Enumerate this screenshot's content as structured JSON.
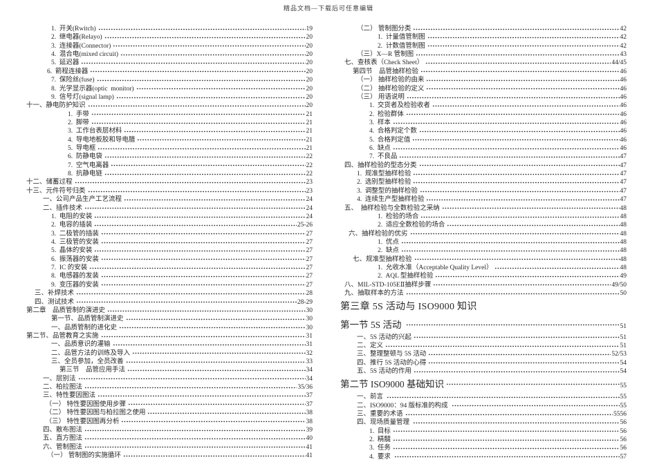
{
  "header": {
    "watermark": "精品文档—下载后可任意编辑"
  },
  "toc": {
    "left": [
      {
        "indent": 3,
        "text": "1.  开关(Rwitch)",
        "page": "19"
      },
      {
        "indent": 3,
        "text": "2.  继电器(Relayo)",
        "page": "20"
      },
      {
        "indent": 3,
        "text": "3.  连接器(Connector)",
        "page": "20"
      },
      {
        "indent": 3,
        "text": "4.  混合电(mixed circuit)",
        "page": "20"
      },
      {
        "indent": 3,
        "text": "5.  延迟器",
        "page": "20"
      },
      {
        "indent": 2.5,
        "text": "6.  箭程连接器",
        "page": "20"
      },
      {
        "indent": 3,
        "text": "7.  保险丝(fuse)",
        "page": "20"
      },
      {
        "indent": 3,
        "text": "8.  光学显示器(optic  monitor)",
        "page": "20"
      },
      {
        "indent": 3,
        "text": "9.  信号灯(signal lamp)",
        "page": "20"
      },
      {
        "indent": 0,
        "text": "十一、静电防护知识",
        "page": "20"
      },
      {
        "indent": 5,
        "text": "1.  手带",
        "page": "21"
      },
      {
        "indent": 5,
        "text": "2.  脚带",
        "page": "21"
      },
      {
        "indent": 5,
        "text": "3.  工作台表层材料",
        "page": "21"
      },
      {
        "indent": 5,
        "text": "4.  导电地板胶和导电腊",
        "page": "21"
      },
      {
        "indent": 5,
        "text": "5.  导电框",
        "page": "21"
      },
      {
        "indent": 5,
        "text": "6.  防静电袋",
        "page": "22"
      },
      {
        "indent": 5,
        "text": "7.  空气电离器",
        "page": "22"
      },
      {
        "indent": 5,
        "text": "8.  抗静电链",
        "page": "22"
      },
      {
        "indent": 0,
        "text": "十二、储蓄过程",
        "page": "23"
      },
      {
        "indent": 0,
        "text": "十三、元件符号归类",
        "page": "23"
      },
      {
        "indent": 2,
        "text": "一、公司产品生产工艺流程",
        "page": "24"
      },
      {
        "indent": 2,
        "text": "二、插件技术",
        "page": "24"
      },
      {
        "indent": 3,
        "text": "1.  电阻的安装",
        "page": "24"
      },
      {
        "indent": 3,
        "text": "2.  电容的插装",
        "page": "25-26"
      },
      {
        "indent": 3,
        "text": "3.  二极管的插装",
        "page": "27"
      },
      {
        "indent": 3,
        "text": "4.  三极管的安装",
        "page": "27"
      },
      {
        "indent": 3,
        "text": "5.  晶体的安装",
        "page": "27"
      },
      {
        "indent": 3,
        "text": "6.  振荡器的安装",
        "page": "27"
      },
      {
        "indent": 3,
        "text": "7.  IC 的安装",
        "page": "27"
      },
      {
        "indent": 3,
        "text": "8.  电感器的发装",
        "page": "27"
      },
      {
        "indent": 3,
        "text": "9.  变压器的安装",
        "page": "27"
      },
      {
        "indent": 1,
        "text": "三、补焊技术",
        "page": "28"
      },
      {
        "indent": 1,
        "text": "四、测试技术",
        "page": "28-29"
      },
      {
        "indent": 0,
        "text": "第二章　品质管制的演进史",
        "page": "30"
      },
      {
        "indent": 3,
        "text": "第一节、品质管制演进史",
        "page": "30"
      },
      {
        "indent": 3,
        "text": "一、品质管制的进化史",
        "page": "30"
      },
      {
        "indent": 0,
        "text": "第二节、品管教育之实施",
        "page": "31"
      },
      {
        "indent": 3,
        "text": "一、品质意识的灌输",
        "page": "31"
      },
      {
        "indent": 3,
        "text": "二、品管方法的训练及导入",
        "page": "32"
      },
      {
        "indent": 3,
        "text": "三、全员参加，全员改善",
        "page": "33"
      },
      {
        "indent": 4,
        "text": "第三节　品管应用手法",
        "page": "34"
      },
      {
        "indent": 2,
        "text": "一、层别法",
        "page": "34"
      },
      {
        "indent": 2,
        "text": "二、柏拉图法",
        "page": "35/36"
      },
      {
        "indent": 2,
        "text": "三、特性要因图法",
        "page": "37"
      },
      {
        "indent": 2.3,
        "text": "（一） 特性要因图使用步骤",
        "page": "37"
      },
      {
        "indent": 2.3,
        "text": "（二） 特性要因图与柏拉图之使用",
        "page": "38"
      },
      {
        "indent": 2.3,
        "text": "（三） 特性要因图再分析",
        "page": "38"
      },
      {
        "indent": 2,
        "text": "四、散布图法",
        "page": "39"
      },
      {
        "indent": 2,
        "text": "五、直方图法",
        "page": "40"
      },
      {
        "indent": 2,
        "text": "六、管制图法",
        "page": "41"
      },
      {
        "indent": 2.5,
        "text": "（一） 管制图的实施循环",
        "page": "41"
      }
    ],
    "right": [
      {
        "indent": 2,
        "text": "（二） 管制图分类",
        "page": "42"
      },
      {
        "indent": 4.5,
        "text": "1.  计量值管制图",
        "page": "42"
      },
      {
        "indent": 4.5,
        "text": "2.  计数值管制图",
        "page": "42"
      },
      {
        "indent": 2,
        "text": "（三）X—R 管制图",
        "page": "43"
      },
      {
        "indent": 0.5,
        "text": "七、查核表（Check Sheet）",
        "page": "44/45"
      },
      {
        "indent": 1.5,
        "text": "第四节　品管抽样检验",
        "page": "46"
      },
      {
        "indent": 2,
        "text": "（一） 抽样检验的由来",
        "page": "46"
      },
      {
        "indent": 2,
        "text": "（二） 抽样检验的定义",
        "page": "46"
      },
      {
        "indent": 2,
        "text": "（三） 用语说明",
        "page": "46"
      },
      {
        "indent": 3.5,
        "text": "1.  交货者及检验收者",
        "page": "46"
      },
      {
        "indent": 3.5,
        "text": "2.  检验群体",
        "page": "46"
      },
      {
        "indent": 3.5,
        "text": "3.  样本",
        "page": "46"
      },
      {
        "indent": 3.5,
        "text": "4.  合格判定个数",
        "page": "46"
      },
      {
        "indent": 3.5,
        "text": "5.  合格判定值",
        "page": "46"
      },
      {
        "indent": 3.5,
        "text": "6.  缺点",
        "page": "46"
      },
      {
        "indent": 3.5,
        "text": "7.  不良品",
        "page": "47"
      },
      {
        "indent": 0.5,
        "text": "四、抽样检验的型态分类",
        "page": "47"
      },
      {
        "indent": 2,
        "text": "1.  规准型抽样检验",
        "page": "47"
      },
      {
        "indent": 2,
        "text": "2.  选别型抽样检验",
        "page": "47"
      },
      {
        "indent": 2,
        "text": "3.  调整型的抽样检验",
        "page": "47"
      },
      {
        "indent": 2,
        "text": "4.  连续生产型抽样检验",
        "page": "47"
      },
      {
        "indent": 0.5,
        "text": "五、　抽样检验与全数检验之采纳",
        "page": "48"
      },
      {
        "indent": 4.5,
        "text": "1.  检验的场合",
        "page": "48"
      },
      {
        "indent": 4.5,
        "text": "2.  适应全数检验的场合",
        "page": "48"
      },
      {
        "indent": 1,
        "text": "六、抽样检验的优劣",
        "page": "48"
      },
      {
        "indent": 4.5,
        "text": "1.  优点",
        "page": "48"
      },
      {
        "indent": 4.5,
        "text": "2.  缺点",
        "page": "48"
      },
      {
        "indent": 1.5,
        "text": "七、规准型抽样检验",
        "page": "48"
      },
      {
        "indent": 4.5,
        "text": "1.  允收水准（Acceptable Quality Level）",
        "page": "48"
      },
      {
        "indent": 4.5,
        "text": "2.  AQL 型抽样检验",
        "page": "49"
      },
      {
        "indent": 0.5,
        "text": "八、MIL-STD-105EⅡ抽样步骤",
        "page": "49/50"
      },
      {
        "indent": 0.5,
        "text": "九、抽取样本的方法",
        "page": "50"
      },
      {
        "indent": 0,
        "type": "chapter",
        "text": "第三章 5S 活动与 ISO9000 知识",
        "page": ""
      },
      {
        "indent": 0,
        "type": "section",
        "text": "第一节 5S 活动 ",
        "page": "51"
      },
      {
        "indent": 2,
        "text": "一、5S 活动的兴起",
        "page": "51"
      },
      {
        "indent": 2,
        "text": "二、定义",
        "page": "51"
      },
      {
        "indent": 2,
        "text": "三、整理整顿与 5S 活动",
        "page": "52/53"
      },
      {
        "indent": 2,
        "text": "四、推行 5S 活动的心得",
        "page": "54"
      },
      {
        "indent": 2,
        "text": "五、5S 活动的作用",
        "page": "54"
      },
      {
        "indent": 0,
        "type": "section",
        "text": "第二节 ISO9000 基础知识",
        "page": "55"
      },
      {
        "indent": 2,
        "text": "一、前言 ",
        "page": "55"
      },
      {
        "indent": 2,
        "text": "二、ISO9000：94 版标准的构成 ",
        "page": "55"
      },
      {
        "indent": 2,
        "text": "三、重要的术语",
        "page": "5556"
      },
      {
        "indent": 2,
        "text": "四、现场质量管理 ",
        "page": "56"
      },
      {
        "indent": 3.5,
        "text": "1.  目标",
        "page": "56"
      },
      {
        "indent": 3.5,
        "text": "2.  精髓",
        "page": "56"
      },
      {
        "indent": 3.5,
        "text": "3.  任务",
        "page": "56"
      },
      {
        "indent": 3.5,
        "text": "4.  要求 ",
        "page": "57"
      }
    ]
  }
}
